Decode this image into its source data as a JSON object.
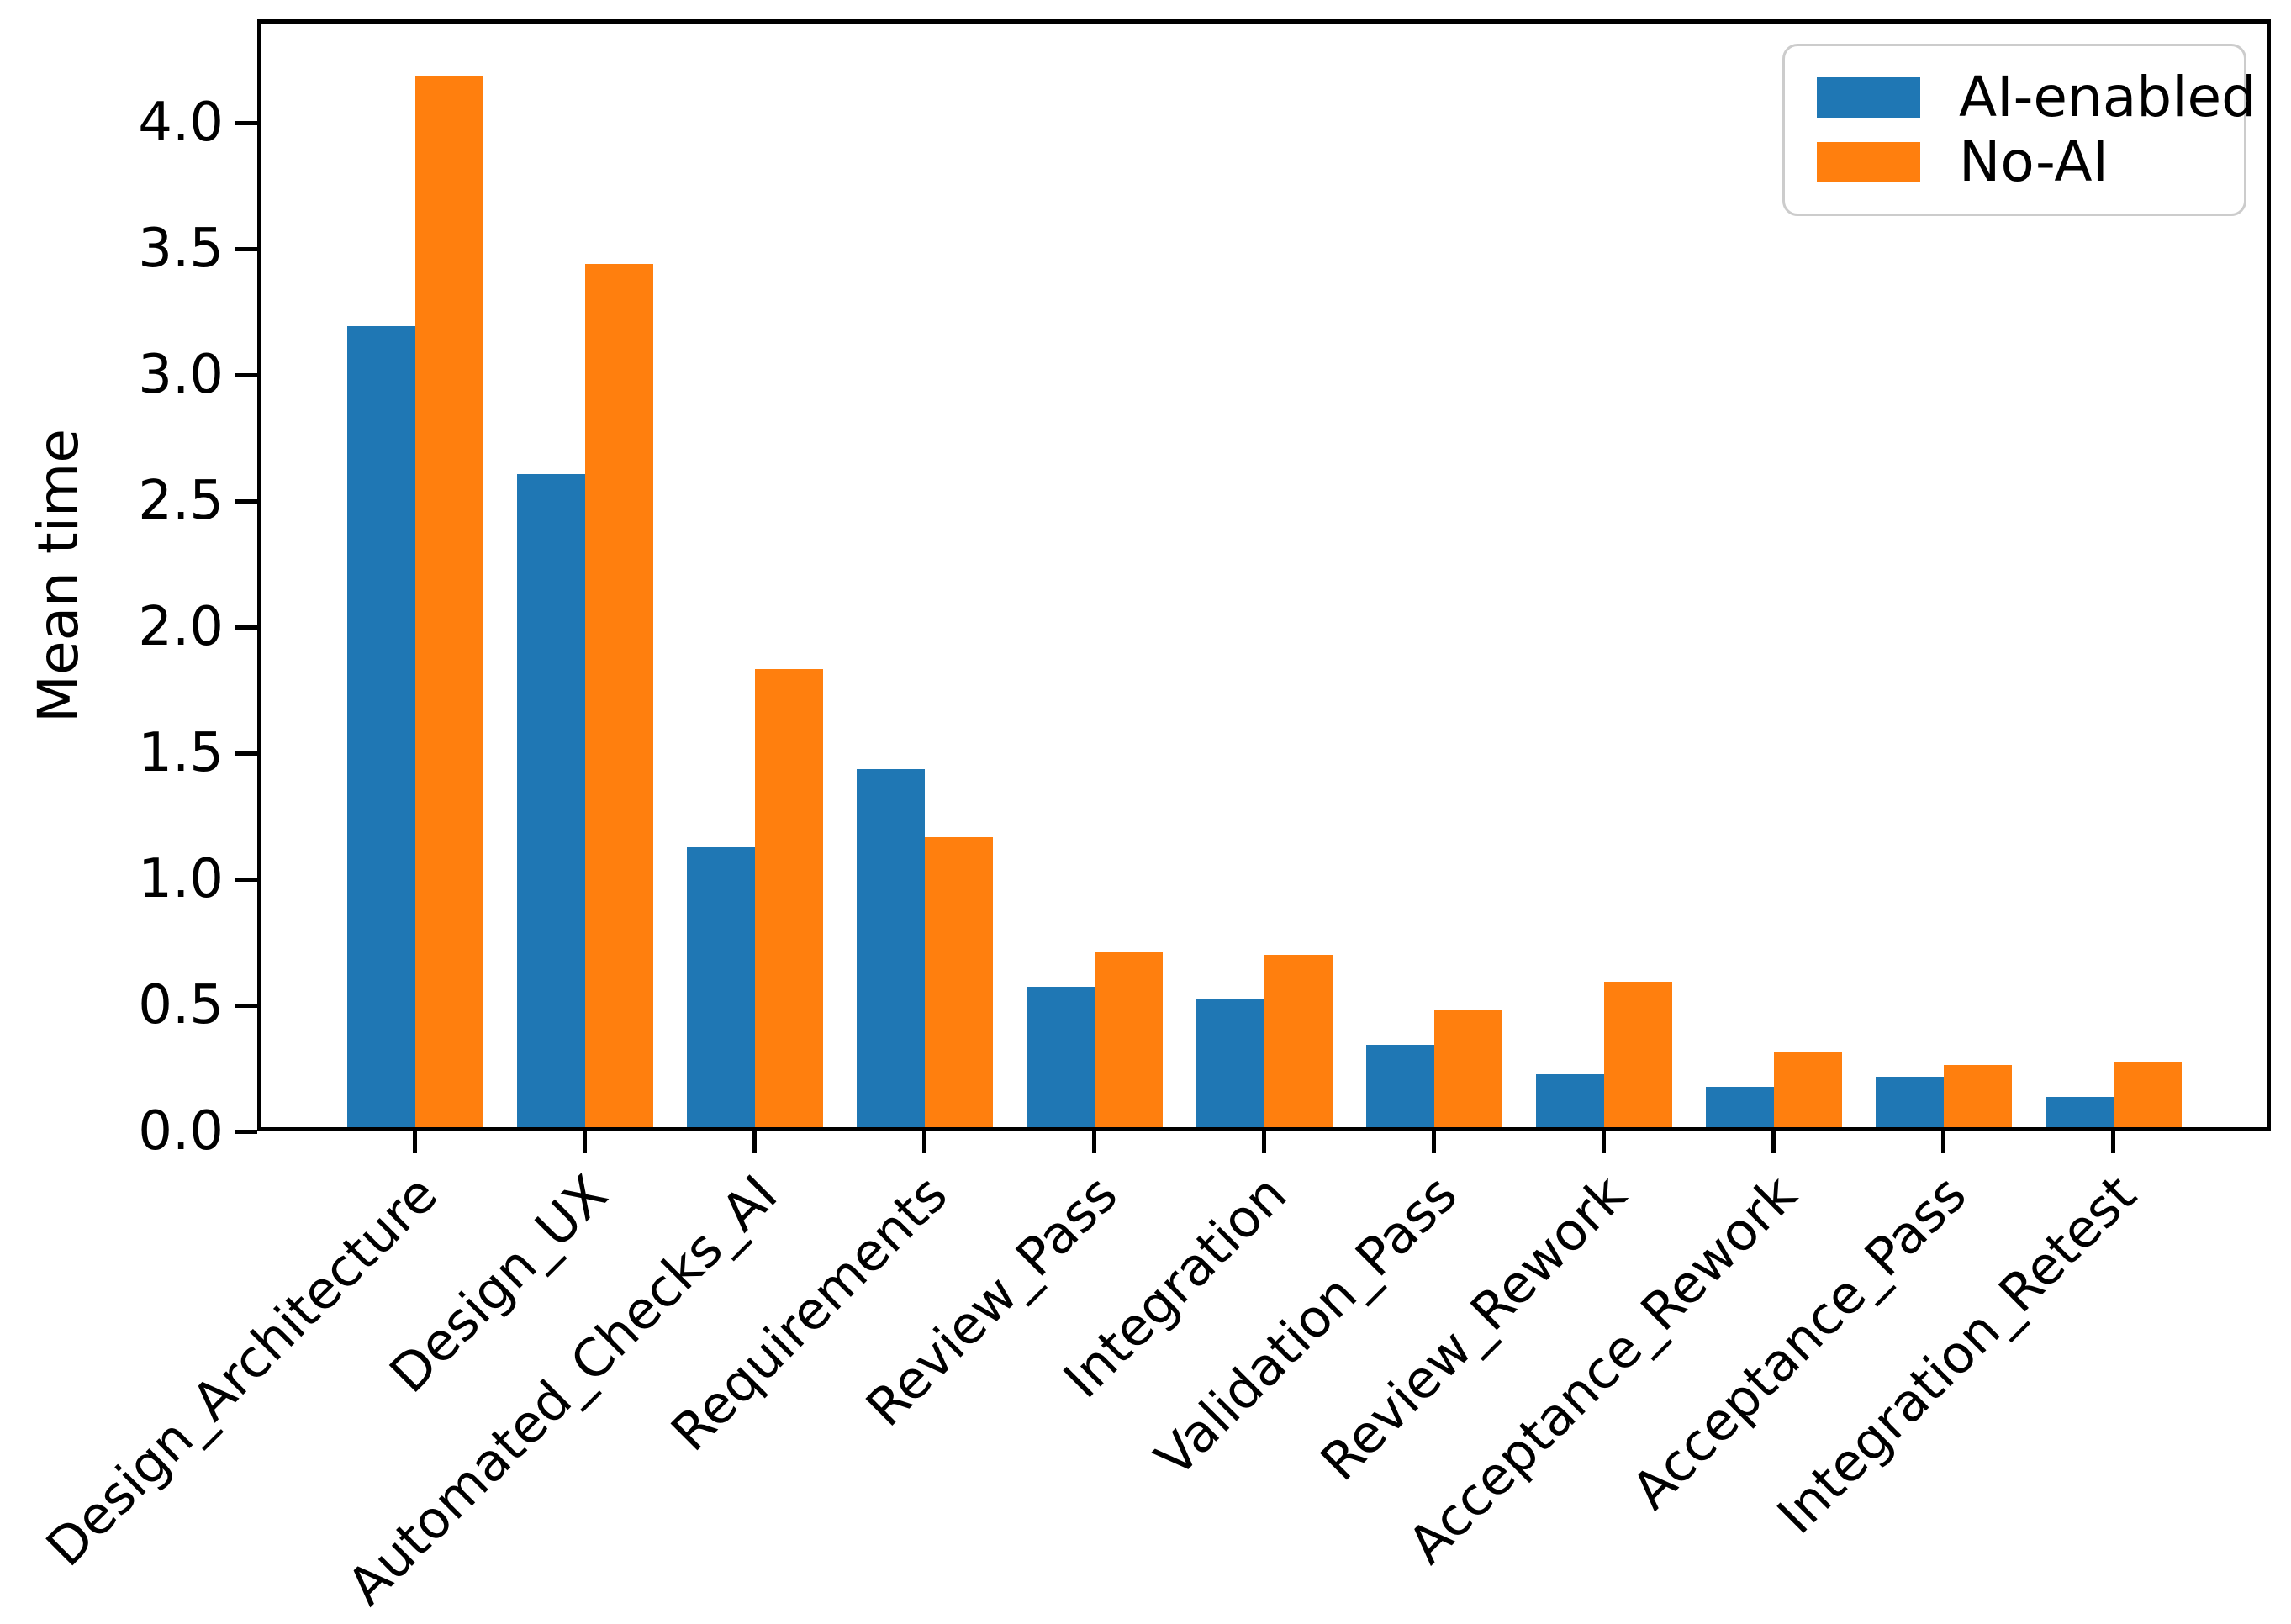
{
  "figure": {
    "background": "#ffffff",
    "text_color": "#000000"
  },
  "chart_data": {
    "type": "bar",
    "title": "",
    "xlabel": "",
    "ylabel": "Mean time",
    "categories": [
      "Design_Architecture",
      "Design_UX",
      "Automated_Checks_AI",
      "Requirements",
      "Review_Pass",
      "Integration",
      "Validation_Pass",
      "Review_Rework",
      "Acceptance_Rework",
      "Acceptance_Pass",
      "Integration_Retest"
    ],
    "series": [
      {
        "name": "AI-enabled",
        "color": "#1f77b4",
        "values": [
          3.2,
          2.61,
          1.12,
          1.43,
          0.56,
          0.51,
          0.33,
          0.21,
          0.16,
          0.2,
          0.12
        ]
      },
      {
        "name": "No-AI",
        "color": "#ff7f0e",
        "values": [
          4.2,
          3.45,
          1.83,
          1.16,
          0.7,
          0.69,
          0.47,
          0.58,
          0.3,
          0.25,
          0.26
        ]
      }
    ],
    "ylim": [
      0,
      4.41
    ],
    "yticks": [
      0.0,
      0.5,
      1.0,
      1.5,
      2.0,
      2.5,
      3.0,
      3.5,
      4.0
    ],
    "ytick_labels": [
      "0.0",
      "0.5",
      "1.0",
      "1.5",
      "2.0",
      "2.5",
      "3.0",
      "3.5",
      "4.0"
    ],
    "grid": false,
    "legend_position": "upper right",
    "bar_width_fraction": 0.4,
    "xtick_rotation_deg": 45
  }
}
